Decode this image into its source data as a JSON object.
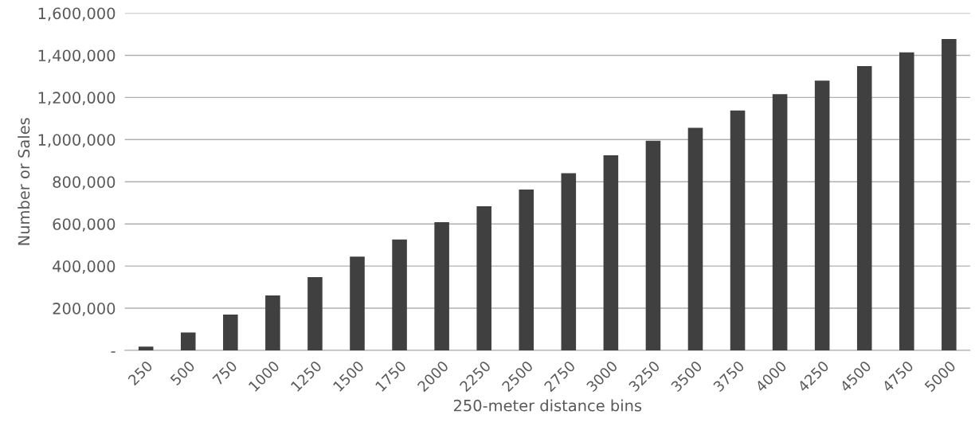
{
  "chart_data": {
    "type": "bar",
    "xlabel": "250-meter distance bins",
    "ylabel": "Number or Sales",
    "categories": [
      "250",
      "500",
      "750",
      "1000",
      "1250",
      "1500",
      "1750",
      "2000",
      "2250",
      "2500",
      "2750",
      "3000",
      "3250",
      "3500",
      "3750",
      "4000",
      "4250",
      "4500",
      "4750",
      "5000"
    ],
    "values": [
      18000,
      85000,
      170000,
      261000,
      348000,
      445000,
      526000,
      608000,
      684000,
      763000,
      841000,
      926000,
      995000,
      1056000,
      1138000,
      1216000,
      1280000,
      1349000,
      1414000,
      1477000
    ],
    "color": "#404040",
    "ylim": [
      0,
      1600000
    ],
    "yticks": [
      {
        "value": 0,
        "label": "-"
      },
      {
        "value": 200000,
        "label": "200,000"
      },
      {
        "value": 400000,
        "label": "400,000"
      },
      {
        "value": 600000,
        "label": "600,000"
      },
      {
        "value": 800000,
        "label": "800,000"
      },
      {
        "value": 1000000,
        "label": "1,000,000"
      },
      {
        "value": 1200000,
        "label": "1,200,000"
      },
      {
        "value": 1400000,
        "label": "1,400,000"
      },
      {
        "value": 1600000,
        "label": "1,600,000"
      }
    ],
    "grid": "y",
    "legend": false
  }
}
